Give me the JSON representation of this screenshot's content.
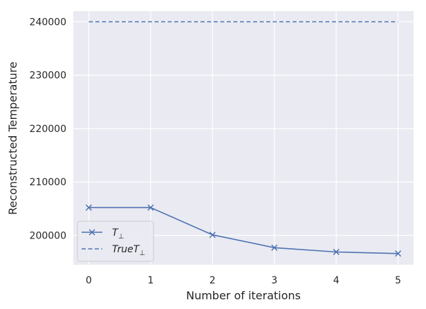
{
  "chart_data": {
    "type": "line",
    "title": "",
    "xlabel": "Number of iterations",
    "ylabel": "Reconstructed Temperature",
    "xlim": [
      -0.25,
      5.25
    ],
    "ylim": [
      194500,
      242000
    ],
    "x_ticks": [
      "0",
      "1",
      "2",
      "3",
      "4",
      "5"
    ],
    "y_ticks": [
      "200000",
      "210000",
      "220000",
      "230000",
      "240000"
    ],
    "grid": true,
    "legend_position": "lower-left",
    "x": [
      0,
      1,
      2,
      3,
      4,
      5
    ],
    "series": [
      {
        "name": "T⊥",
        "legend_main": "T",
        "legend_sub": "⊥",
        "values": [
          205200,
          205200,
          200100,
          197700,
          196900,
          196600
        ],
        "style": "solid",
        "marker": "x",
        "color": "#4c72b0"
      },
      {
        "name": "TrueT⊥",
        "legend_main": "TrueT",
        "legend_sub": "⊥",
        "values": [
          240000,
          240000,
          240000,
          240000,
          240000,
          240000
        ],
        "style": "dashed",
        "marker": "none",
        "color": "#4c72b0"
      }
    ],
    "colors": {
      "plot_background": "#eaeaf2",
      "grid": "#ffffff",
      "line": "#4c72b0"
    }
  }
}
